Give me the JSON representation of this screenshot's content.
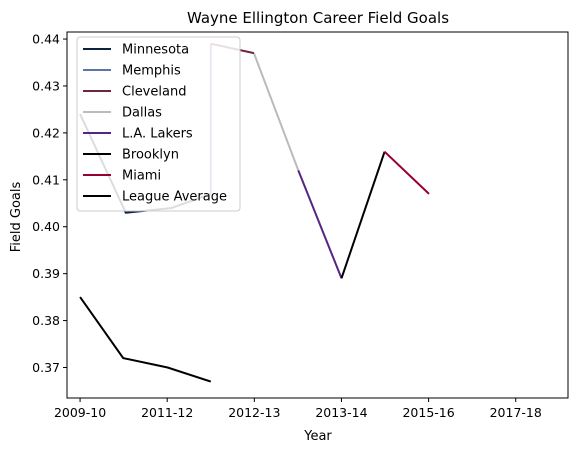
{
  "chart_data": {
    "type": "line",
    "title": "Wayne Ellington Career Field Goals",
    "xlabel": "Year",
    "ylabel": "Field Goals",
    "x_tick_labels": [
      "2009-10",
      "2011-12",
      "2012-13",
      "2013-14",
      "2015-16",
      "2017-18"
    ],
    "x_tick_positions": [
      0,
      1,
      2,
      3,
      4,
      5
    ],
    "xlim": [
      -0.15,
      5.6
    ],
    "ylim": [
      0.3635,
      0.4415
    ],
    "y_ticks": [
      0.37,
      0.38,
      0.39,
      0.4,
      0.41,
      0.42,
      0.43,
      0.44
    ],
    "y_tick_labels": [
      "0.37",
      "0.38",
      "0.39",
      "0.40",
      "0.41",
      "0.42",
      "0.43",
      "0.44"
    ],
    "grid": false,
    "legend_position": "top-left",
    "series": [
      {
        "name": "Minnesota",
        "color": "#0c2340",
        "points": [
          [
            0,
            0.424
          ],
          [
            0.35,
            0.403
          ],
          [
            0.7,
            0.404
          ],
          [
            1.0,
            0.407
          ]
        ]
      },
      {
        "name": "Memphis",
        "color": "#5d76a9",
        "points": [
          [
            1.0,
            0.407
          ],
          [
            1.0,
            0.439
          ]
        ]
      },
      {
        "name": "Cleveland",
        "color": "#6f263d",
        "points": [
          [
            1.0,
            0.439
          ],
          [
            1.33,
            0.437
          ]
        ]
      },
      {
        "name": "Dallas",
        "color": "#bbbbbb",
        "points": [
          [
            0,
            0.424
          ],
          [
            0.35,
            0.403
          ]
        ],
        "extra_points": [
          [
            1.33,
            0.437
          ],
          [
            1.67,
            0.412
          ]
        ]
      },
      {
        "name": "L.A. Lakers",
        "color": "#552583",
        "points": [
          [
            1.67,
            0.412
          ],
          [
            2.0,
            0.389
          ]
        ]
      },
      {
        "name": "Brooklyn",
        "color": "#000000",
        "points": [
          [
            2.0,
            0.389
          ],
          [
            2.33,
            0.416
          ]
        ]
      },
      {
        "name": "Miami",
        "color": "#98002e",
        "points": [
          [
            2.33,
            0.416
          ],
          [
            2.67,
            0.407
          ]
        ]
      },
      {
        "name": "League Average",
        "color": "#000000",
        "points": [
          [
            0,
            0.385
          ],
          [
            0.33,
            0.372
          ],
          [
            0.67,
            0.37
          ],
          [
            1.0,
            0.367
          ]
        ]
      }
    ]
  }
}
